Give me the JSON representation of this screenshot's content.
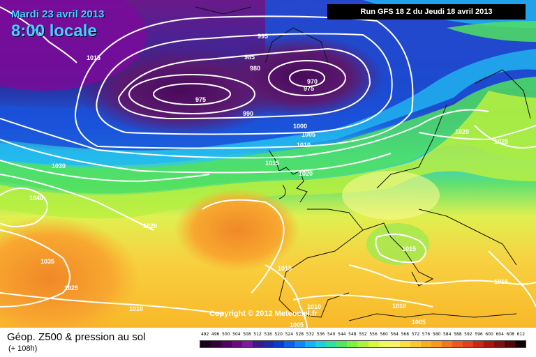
{
  "header": {
    "date": "Mardi 23 avril 2013",
    "time": "8:00 locale",
    "run": "Run GFS 18 Z du Jeudi 18 avril 2013"
  },
  "map": {
    "copyright": "Copyright © 2012 Meteociel.fr",
    "isobar_labels": [
      "995",
      "1015",
      "985",
      "980",
      "970",
      "975",
      "975",
      "990",
      "1000",
      "1005",
      "1010",
      "1020",
      "1025",
      "1030",
      "1015",
      "1020",
      "1040",
      "1020",
      "1015",
      "1035",
      "1015",
      "1025",
      "1010",
      "1010",
      "1010",
      "1005",
      "1005",
      "1015"
    ]
  },
  "legend": {
    "title": "Géop. Z500 & pression au sol",
    "forecast": "(+ 108h)",
    "scale_values": [
      "492",
      "496",
      "500",
      "504",
      "508",
      "512",
      "516",
      "520",
      "524",
      "528",
      "532",
      "536",
      "540",
      "544",
      "548",
      "552",
      "556",
      "560",
      "564",
      "568",
      "572",
      "576",
      "580",
      "584",
      "588",
      "592",
      "596",
      "600",
      "604",
      "608",
      "612"
    ],
    "scale_colors": [
      "#1a001a",
      "#34003a",
      "#4f0060",
      "#6a0a80",
      "#7a1aa0",
      "#3a1a8a",
      "#1a2aa8",
      "#0a3cd0",
      "#0a60e8",
      "#1088f8",
      "#18b0f8",
      "#20d0e0",
      "#30e0a0",
      "#50e860",
      "#80f040",
      "#b0f040",
      "#d8f840",
      "#f0f860",
      "#f8f070",
      "#f8e040",
      "#f8c830",
      "#f8b020",
      "#f89820",
      "#f07820",
      "#e85820",
      "#e04020",
      "#c82818",
      "#a81810",
      "#801010",
      "#500808",
      "#100000"
    ]
  }
}
